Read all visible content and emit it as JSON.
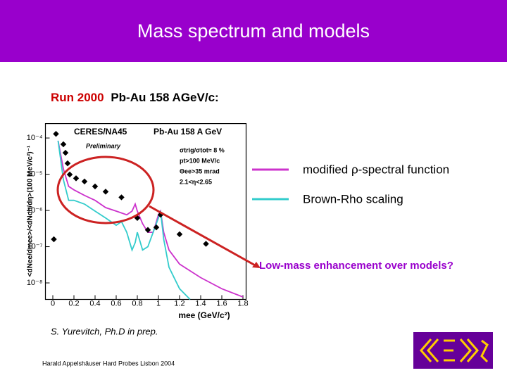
{
  "title": "Mass spectrum and models",
  "subtitle": {
    "highlight": "Run 2000",
    "rest": "Pb-Au 158 AGeV/c:"
  },
  "annotation": "Low-mass enhancement over models?",
  "credit": "S. Yurevitch, Ph.D in prep.",
  "footer": "Harald Appelshäuser  Hard Probes Lisbon 2004",
  "chart_data": {
    "type": "line",
    "title": "CERES/NA45",
    "subtitle": "Pb-Au 158 A GeV",
    "annotations": [
      "Preliminary",
      "σtrig/σtot≈ 8 %",
      "pt>100 MeV/c",
      "Θee>35 mrad",
      "2.1<η<2.65"
    ],
    "x_label": "mee (GeV/c²)",
    "y_label": "<dNee/dmee>/<dNch/dη>(100 MeV/c²)⁻¹",
    "ylog": true,
    "grid": false,
    "xlim": [
      -0.07,
      1.83
    ],
    "ylim": [
      3.5e-09,
      0.00025
    ],
    "xticks": [
      0,
      0.2,
      0.4,
      0.6,
      0.8,
      1,
      1.2,
      1.4,
      1.6,
      1.8
    ],
    "yticks": [
      {
        "value": 0.0001,
        "label": "10⁻⁴"
      },
      {
        "value": 1e-05,
        "label": "10⁻⁵"
      },
      {
        "value": 1e-06,
        "label": "10⁻⁶"
      },
      {
        "value": 1e-07,
        "label": "10⁻⁷"
      },
      {
        "value": 1e-08,
        "label": "10⁻⁸"
      }
    ],
    "points": {
      "color": "#000000",
      "x": [
        0.01,
        0.03,
        0.1,
        0.12,
        0.14,
        0.16,
        0.22,
        0.3,
        0.4,
        0.5,
        0.65,
        0.8,
        0.9,
        0.98,
        1.02,
        1.2,
        1.45
      ],
      "values": [
        1.6e-07,
        0.00013,
        6.7e-05,
        3.9e-05,
        2e-05,
        9.8e-06,
        7.7e-06,
        6.3e-06,
        4.6e-06,
        3.3e-06,
        2.3e-06,
        6.2e-07,
        2.9e-07,
        3.4e-07,
        7.6e-07,
        2.2e-07,
        1.2e-07
      ]
    },
    "series": [
      {
        "name": "modified ρ-spectral function",
        "color": "#cc33cc",
        "x": [
          0.05,
          0.1,
          0.15,
          0.2,
          0.3,
          0.4,
          0.5,
          0.6,
          0.7,
          0.75,
          0.78,
          0.8,
          0.85,
          0.9,
          0.95,
          1.0,
          1.02,
          1.05,
          1.1,
          1.2,
          1.4,
          1.6,
          1.8
        ],
        "values": [
          8.4e-05,
          1.4e-05,
          4.6e-06,
          3.7e-06,
          2.6e-06,
          1.9e-06,
          1.2e-06,
          9.6e-07,
          7.6e-07,
          9.6e-07,
          1.5e-06,
          9.6e-07,
          4.3e-07,
          2.5e-07,
          2.5e-07,
          7.6e-07,
          9.6e-07,
          2.5e-07,
          8.1e-08,
          3.3e-08,
          1.4e-08,
          6.9e-09,
          4.1e-09
        ]
      },
      {
        "name": "Brown-Rho scaling",
        "color": "#33cccc",
        "x": [
          0.05,
          0.1,
          0.15,
          0.2,
          0.3,
          0.4,
          0.5,
          0.6,
          0.65,
          0.7,
          0.75,
          0.78,
          0.8,
          0.85,
          0.9,
          0.95,
          1.0,
          1.02,
          1.05,
          1.1,
          1.2,
          1.3
        ],
        "values": [
          8.4e-05,
          7.1e-06,
          1.9e-06,
          1.9e-06,
          1.5e-06,
          9.6e-07,
          6.2e-07,
          3.9e-07,
          4.9e-07,
          2.5e-07,
          8.1e-08,
          1.3e-07,
          2.5e-07,
          8.1e-08,
          1e-07,
          2.5e-07,
          6.2e-07,
          9.6e-07,
          1.6e-07,
          2.7e-08,
          6.9e-09,
          3.5e-09
        ]
      }
    ]
  }
}
